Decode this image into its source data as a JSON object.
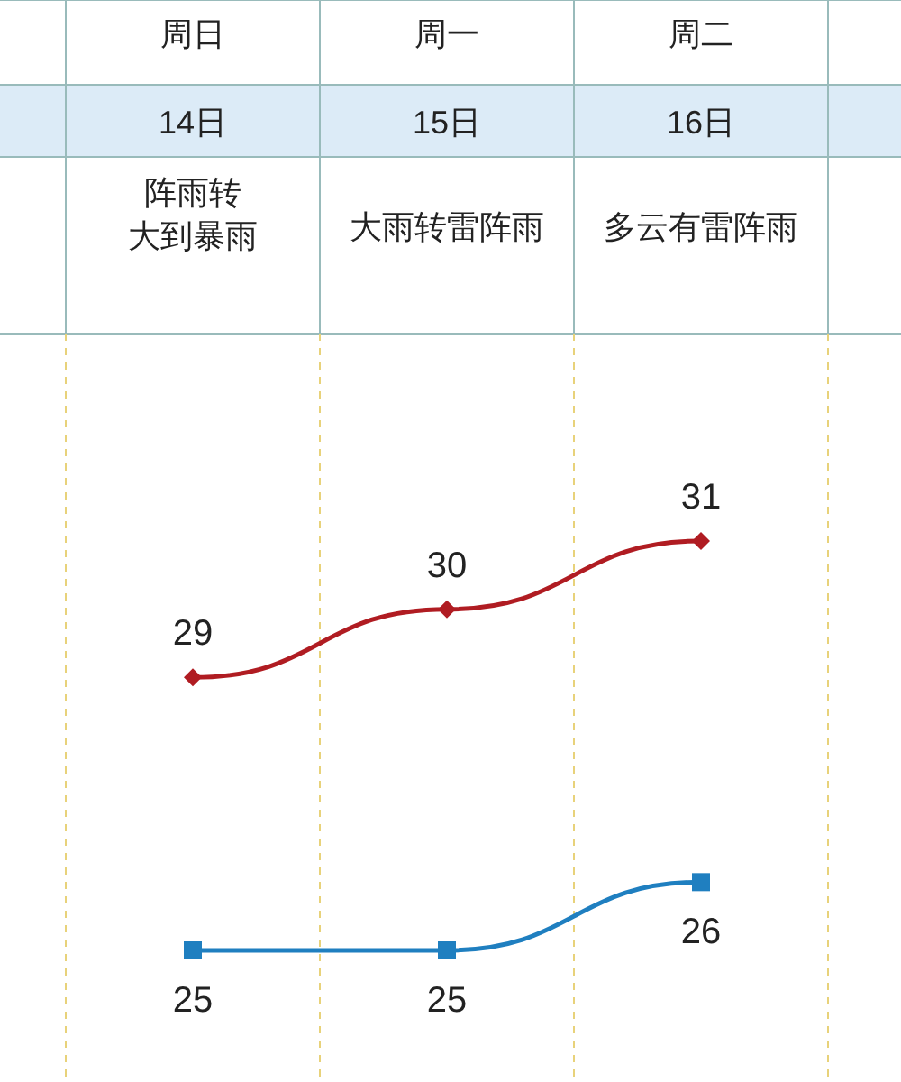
{
  "chart_data": {
    "type": "line",
    "categories": [
      null,
      "周日",
      "周一",
      "周二",
      null
    ],
    "annotations": [
      "14日",
      "15日",
      "16日",
      "阵雨转大到暴雨",
      "大雨转雷阵雨",
      "多云有雷阵雨"
    ],
    "series": [
      {
        "color": "#b01c22",
        "marker": "diamond",
        "values": [
          null,
          29,
          30,
          31,
          null
        ]
      },
      {
        "color": "#1f7fc0",
        "marker": "square",
        "values": [
          null,
          25,
          25,
          26,
          null
        ]
      }
    ],
    "data_labels": true,
    "grid": "x"
  }
}
